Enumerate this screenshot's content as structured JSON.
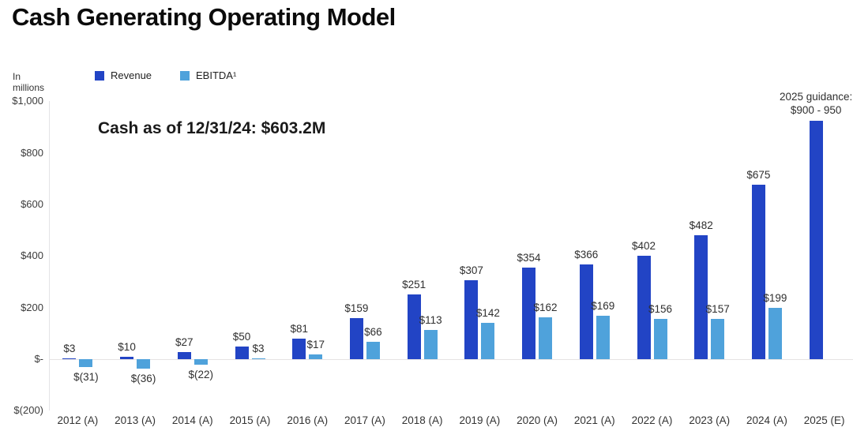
{
  "title": "Cash Generating Operating Model",
  "colors": {
    "revenue": "#2244c5",
    "ebitda": "#4fa2db",
    "axis_line": "#e5e3e4",
    "text": "#333333"
  },
  "chart_data": {
    "type": "bar",
    "title": "Cash Generating Operating Model",
    "units_label": "In millions",
    "annotation": "Cash as of 12/31/24: $603.2M",
    "legend_position": "top",
    "grid": false,
    "categories": [
      "2012 (A)",
      "2013 (A)",
      "2014 (A)",
      "2015 (A)",
      "2016 (A)",
      "2017 (A)",
      "2018 (A)",
      "2019 (A)",
      "2020 (A)",
      "2021 (A)",
      "2022 (A)",
      "2023 (A)",
      "2024 (A)",
      "2025 (E)"
    ],
    "series": [
      {
        "name": "Revenue",
        "color": "#2244c5",
        "values": [
          3,
          10,
          27,
          50,
          81,
          159,
          251,
          307,
          354,
          366,
          402,
          482,
          675,
          925
        ],
        "labels": [
          "$3",
          "$10",
          "$27",
          "$50",
          "$81",
          "$159",
          "$251",
          "$307",
          "$354",
          "$366",
          "$402",
          "$482",
          "$675",
          "2025 guidance:\n$900 - 950"
        ]
      },
      {
        "name": "EBITDA¹",
        "color": "#4fa2db",
        "values": [
          -31,
          -36,
          -22,
          3,
          17,
          66,
          113,
          142,
          162,
          169,
          156,
          157,
          199,
          null
        ],
        "labels": [
          "$(31)",
          "$(36)",
          "$(22)",
          "$3",
          "$17",
          "$66",
          "$113",
          "$142",
          "$162",
          "$169",
          "$156",
          "$157",
          "$199",
          null
        ]
      }
    ],
    "y_axis": {
      "min": -200,
      "max": 1000,
      "tick_values": [
        1000,
        800,
        600,
        400,
        200,
        0,
        -200
      ],
      "tick_labels": [
        "$1,000",
        "$800",
        "$600",
        "$400",
        "$200",
        "$-",
        "$(200)"
      ]
    },
    "guidance_note": "2025 guidance:\n$900 - 950"
  }
}
